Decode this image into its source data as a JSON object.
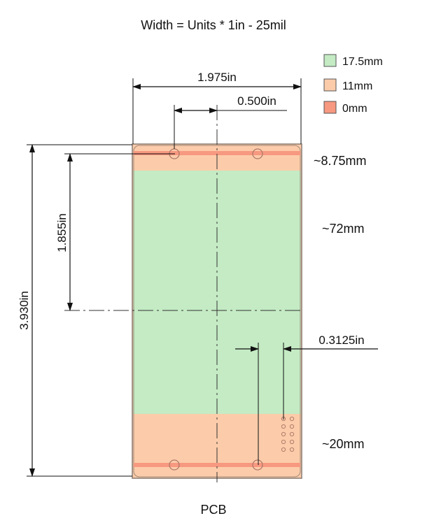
{
  "title": "Width = Units * 1in - 25mil",
  "caption": "PCB",
  "legend": [
    {
      "label": "17.5mm",
      "color": "#c4ebc4"
    },
    {
      "label": "11mm",
      "color": "#fcccaa"
    },
    {
      "label": "0mm",
      "color": "#f79880"
    }
  ],
  "dimensions": {
    "overall_width": "1.975in",
    "hole_offset": "0.500in",
    "overall_height": "3.930in",
    "center_height": "1.855in",
    "header_offset": "0.3125in"
  },
  "zones": {
    "top": "~8.75mm",
    "middle": "~72mm",
    "bottom": "~20mm"
  },
  "colors": {
    "zone_green": "#c4ebc4",
    "zone_orange": "#fcccaa",
    "zone_red": "#f79880",
    "outline": "#8a7a70",
    "dim_line": "#111111",
    "center_line": "#333333"
  }
}
